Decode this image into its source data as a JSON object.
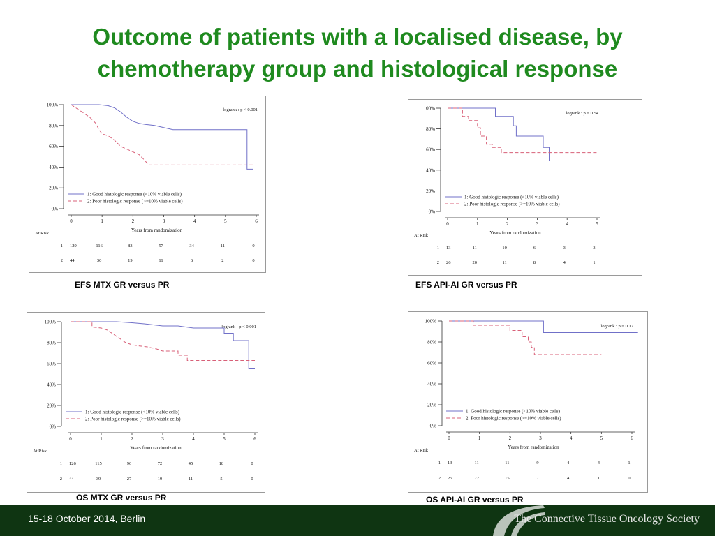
{
  "slide": {
    "title_line1": "Outcome of patients with a localised disease, by",
    "title_line2": "chemotherapy group and histological response",
    "footer_date": "15-18 October 2014, Berlin",
    "footer_society": "The Connective Tissue Oncology Society"
  },
  "colors": {
    "good": "#7070c8",
    "poor": "#d86078",
    "title": "#1f8a1f",
    "footer": "#0f3512"
  },
  "chart_data": [
    {
      "id": "efs-mtx",
      "type": "line",
      "caption": "EFS MTX GR versus PR",
      "logrank": "logrank : p < 0.001",
      "xlabel": "Years from randomization",
      "xticks": [
        "0",
        "1",
        "2",
        "3",
        "4",
        "5",
        "6"
      ],
      "xlim": [
        0,
        6
      ],
      "yticks": [
        "0%",
        "20%",
        "40%",
        "60%",
        "80%",
        "100%"
      ],
      "ylim": [
        0,
        100
      ],
      "series": [
        {
          "name": "1: Good histologic response (<10% viable cells)",
          "style": "solid",
          "points": [
            [
              0,
              100
            ],
            [
              0.9,
              100
            ],
            [
              1.2,
              99
            ],
            [
              1.4,
              97
            ],
            [
              1.6,
              93
            ],
            [
              1.8,
              88
            ],
            [
              2.0,
              84
            ],
            [
              2.2,
              82
            ],
            [
              2.4,
              81
            ],
            [
              2.7,
              80
            ],
            [
              3.0,
              78
            ],
            [
              3.3,
              76
            ],
            [
              3.6,
              76
            ],
            [
              4.0,
              76
            ],
            [
              5.4,
              76
            ],
            [
              5.7,
              76
            ],
            [
              5.7,
              38
            ],
            [
              5.9,
              38
            ]
          ]
        },
        {
          "name": "2: Poor histologic response (>=10% viable cells)",
          "style": "dashed",
          "points": [
            [
              0,
              100
            ],
            [
              0.2,
              96
            ],
            [
              0.4,
              92
            ],
            [
              0.6,
              88
            ],
            [
              0.8,
              82
            ],
            [
              0.9,
              76
            ],
            [
              1.0,
              72
            ],
            [
              1.2,
              70
            ],
            [
              1.4,
              66
            ],
            [
              1.6,
              60
            ],
            [
              1.9,
              56
            ],
            [
              2.2,
              52
            ],
            [
              2.4,
              46
            ],
            [
              2.5,
              42
            ],
            [
              3.5,
              42
            ],
            [
              4.5,
              42
            ],
            [
              5.9,
              42
            ]
          ]
        }
      ],
      "at_risk_label": "At Risk",
      "at_risk": [
        {
          "group": "1",
          "values": [
            "129",
            "116",
            "83",
            "57",
            "34",
            "11",
            "0"
          ]
        },
        {
          "group": "2",
          "values": [
            "44",
            "30",
            "19",
            "11",
            "6",
            "2",
            "0"
          ]
        }
      ]
    },
    {
      "id": "efs-api",
      "type": "line",
      "caption": "EFS API-AI GR versus PR",
      "logrank": "logrank : p = 0.54",
      "xlabel": "Years from randomization",
      "xticks": [
        "0",
        "1",
        "2",
        "3",
        "4",
        "5"
      ],
      "xlim": [
        0,
        5
      ],
      "yticks": [
        "0%",
        "20%",
        "40%",
        "60%",
        "80%",
        "100%"
      ],
      "ylim": [
        0,
        100
      ],
      "series": [
        {
          "name": "1: Good histologic response (<10% viable cells)",
          "style": "solid",
          "points": [
            [
              0,
              100
            ],
            [
              1.6,
              100
            ],
            [
              1.6,
              92
            ],
            [
              2.2,
              92
            ],
            [
              2.2,
              83
            ],
            [
              2.3,
              83
            ],
            [
              2.3,
              73
            ],
            [
              3.2,
              73
            ],
            [
              3.2,
              62
            ],
            [
              3.4,
              62
            ],
            [
              3.4,
              49
            ],
            [
              5.5,
              49
            ]
          ]
        },
        {
          "name": "2: Poor histologic response (>=10% viable cells)",
          "style": "dashed",
          "points": [
            [
              0,
              100
            ],
            [
              0.5,
              100
            ],
            [
              0.5,
              92
            ],
            [
              0.7,
              92
            ],
            [
              0.7,
              88
            ],
            [
              1.0,
              88
            ],
            [
              1.0,
              81
            ],
            [
              1.1,
              81
            ],
            [
              1.1,
              73
            ],
            [
              1.3,
              73
            ],
            [
              1.3,
              65
            ],
            [
              1.5,
              65
            ],
            [
              1.5,
              62
            ],
            [
              1.8,
              62
            ],
            [
              1.8,
              57
            ],
            [
              5.0,
              57
            ]
          ]
        }
      ],
      "at_risk_label": "At Risk",
      "at_risk": [
        {
          "group": "1",
          "values": [
            "13",
            "11",
            "10",
            "6",
            "3",
            "3"
          ]
        },
        {
          "group": "2",
          "values": [
            "26",
            "20",
            "11",
            "8",
            "4",
            "1"
          ]
        }
      ]
    },
    {
      "id": "os-mtx",
      "type": "line",
      "caption": "OS MTX GR versus PR",
      "logrank": "logrank : p < 0.001",
      "xlabel": "Years from randomization",
      "xticks": [
        "0",
        "1",
        "2",
        "3",
        "4",
        "5",
        "6"
      ],
      "xlim": [
        0,
        6
      ],
      "yticks": [
        "0%",
        "20%",
        "40%",
        "60%",
        "80%",
        "100%"
      ],
      "ylim": [
        0,
        100
      ],
      "series": [
        {
          "name": "1: Good histologic response (<10% viable cells)",
          "style": "solid",
          "points": [
            [
              0,
              100
            ],
            [
              1.5,
              100
            ],
            [
              2.0,
              99
            ],
            [
              2.4,
              98
            ],
            [
              3.0,
              96
            ],
            [
              3.5,
              96
            ],
            [
              4.0,
              94
            ],
            [
              5.0,
              94
            ],
            [
              5.0,
              89
            ],
            [
              5.3,
              89
            ],
            [
              5.3,
              82
            ],
            [
              5.8,
              82
            ],
            [
              5.8,
              55
            ],
            [
              6.0,
              55
            ]
          ]
        },
        {
          "name": "2: Poor histologic response (>=10% viable cells)",
          "style": "dashed",
          "points": [
            [
              0,
              100
            ],
            [
              0.7,
              100
            ],
            [
              0.7,
              95
            ],
            [
              1.0,
              94
            ],
            [
              1.2,
              92
            ],
            [
              1.4,
              88
            ],
            [
              1.6,
              84
            ],
            [
              1.8,
              80
            ],
            [
              2.0,
              78
            ],
            [
              2.2,
              77
            ],
            [
              2.5,
              76
            ],
            [
              2.8,
              74
            ],
            [
              3.0,
              72
            ],
            [
              3.5,
              72
            ],
            [
              3.5,
              68
            ],
            [
              3.8,
              68
            ],
            [
              3.8,
              63
            ],
            [
              4.5,
              63
            ],
            [
              6.0,
              63
            ]
          ]
        }
      ],
      "at_risk_label": "At Risk",
      "at_risk": [
        {
          "group": "1",
          "values": [
            "126",
            "115",
            "96",
            "72",
            "45",
            "18",
            "0"
          ]
        },
        {
          "group": "2",
          "values": [
            "44",
            "39",
            "27",
            "19",
            "11",
            "5",
            "0"
          ]
        }
      ]
    },
    {
      "id": "os-api",
      "type": "line",
      "caption": "OS API-AI GR versus PR",
      "logrank": "logrank : p = 0.17",
      "xlabel": "Years from randomization",
      "xticks": [
        "0",
        "1",
        "2",
        "3",
        "4",
        "5",
        "6"
      ],
      "xlim": [
        0,
        6
      ],
      "yticks": [
        "0%",
        "20%",
        "40%",
        "60%",
        "80%",
        "100%"
      ],
      "ylim": [
        0,
        100
      ],
      "series": [
        {
          "name": "1: Good histologic response (<10% viable cells)",
          "style": "solid",
          "points": [
            [
              0,
              100
            ],
            [
              3.1,
              100
            ],
            [
              3.1,
              89
            ],
            [
              6.2,
              89
            ]
          ]
        },
        {
          "name": "2: Poor histologic response (>=10% viable cells)",
          "style": "dashed",
          "points": [
            [
              0,
              100
            ],
            [
              0.8,
              100
            ],
            [
              0.8,
              96
            ],
            [
              2.0,
              96
            ],
            [
              2.0,
              91
            ],
            [
              2.4,
              91
            ],
            [
              2.4,
              85
            ],
            [
              2.6,
              85
            ],
            [
              2.6,
              80
            ],
            [
              2.7,
              80
            ],
            [
              2.7,
              75
            ],
            [
              2.8,
              75
            ],
            [
              2.8,
              68
            ],
            [
              5.0,
              68
            ]
          ]
        }
      ],
      "at_risk_label": "At Risk",
      "at_risk": [
        {
          "group": "1",
          "values": [
            "13",
            "11",
            "11",
            "9",
            "4",
            "4",
            "1"
          ]
        },
        {
          "group": "2",
          "values": [
            "25",
            "22",
            "15",
            "7",
            "4",
            "1",
            "0"
          ]
        }
      ]
    }
  ]
}
